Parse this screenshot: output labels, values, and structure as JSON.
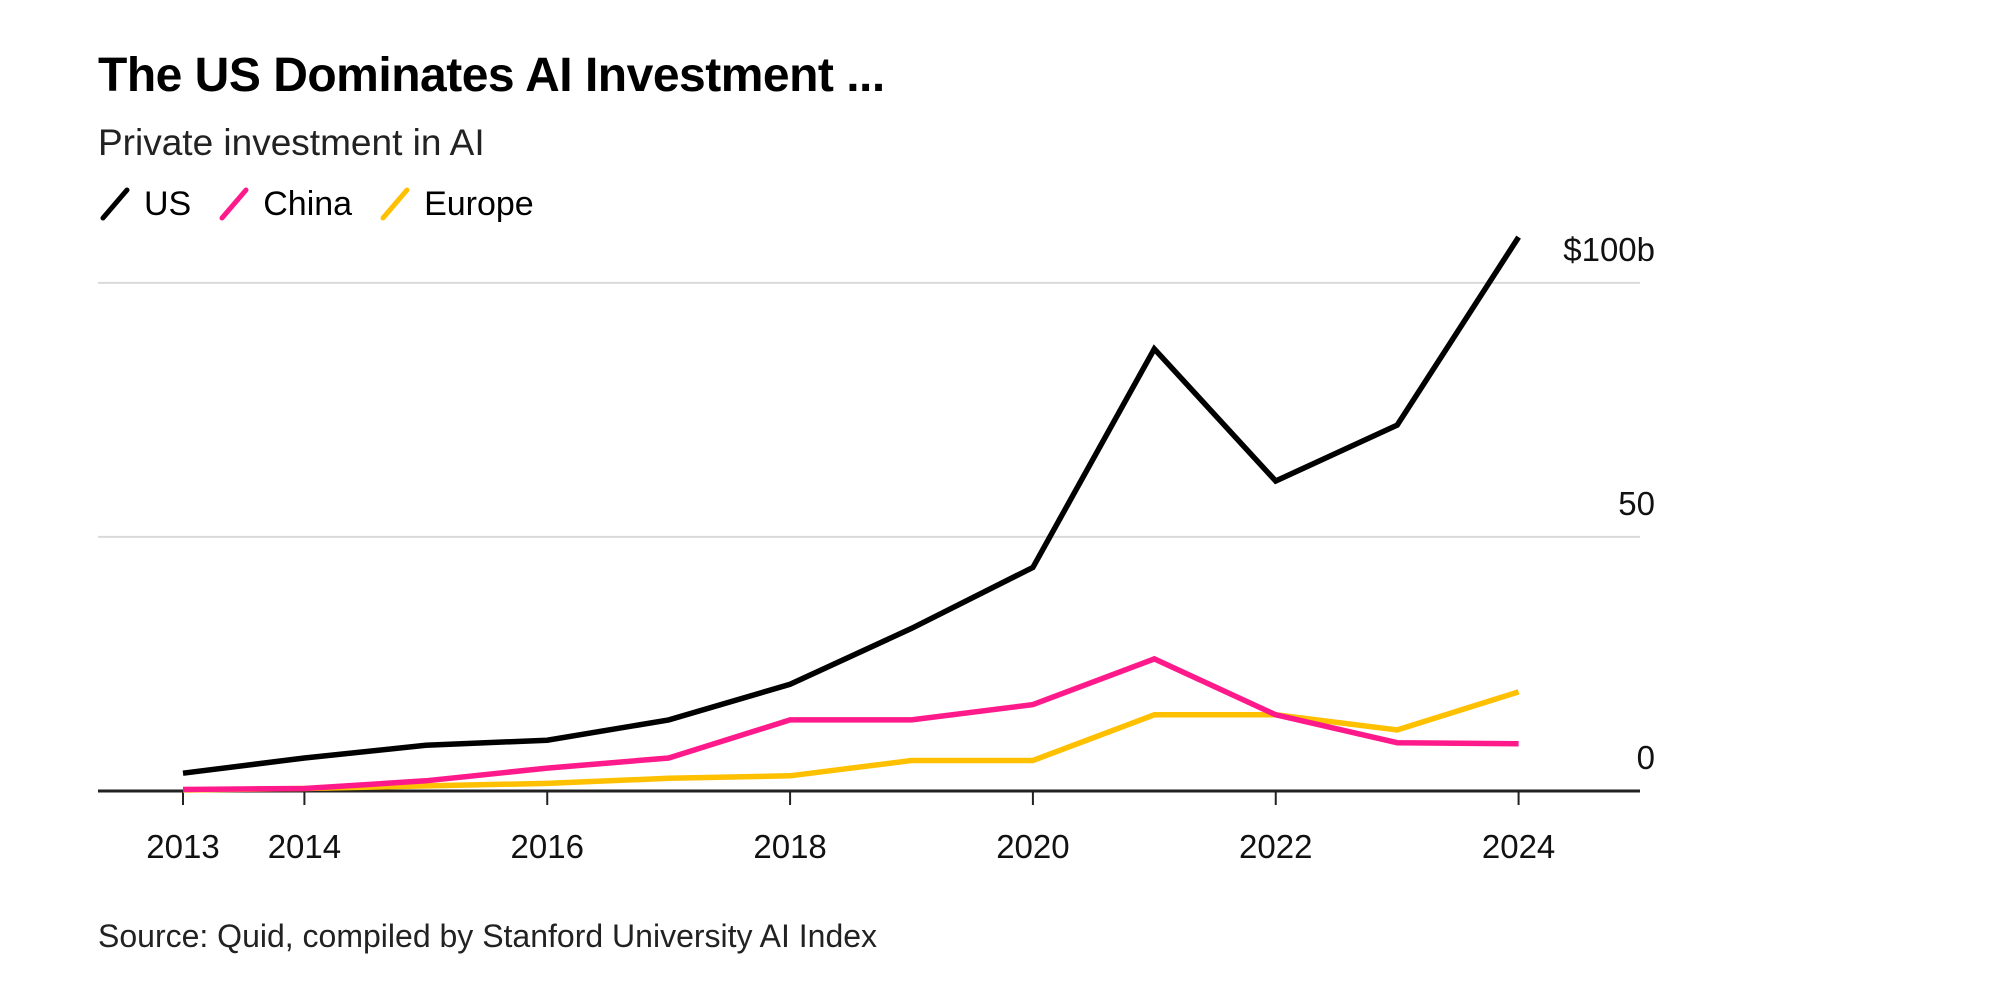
{
  "title": "The US Dominates AI Investment ...",
  "subtitle": "Private investment in AI",
  "source": "Source: Quid, compiled by Stanford University AI Index",
  "chart_data": {
    "type": "line",
    "title": "The US Dominates AI Investment ...",
    "subtitle": "Private investment in AI",
    "xlabel": "",
    "ylabel": "",
    "x": [
      2013,
      2014,
      2015,
      2016,
      2017,
      2018,
      2019,
      2020,
      2021,
      2022,
      2023,
      2024
    ],
    "x_tick_labels": [
      "2013",
      "2014",
      "2016",
      "2018",
      "2020",
      "2022",
      "2024"
    ],
    "x_tick_values": [
      2013,
      2014,
      2016,
      2018,
      2020,
      2022,
      2024
    ],
    "y_tick_labels": [
      "$100b",
      "50",
      "0"
    ],
    "y_tick_values": [
      100,
      50,
      0
    ],
    "xlim": [
      2012.3,
      2025.0
    ],
    "ylim": [
      0,
      110
    ],
    "grid": "horizontal",
    "legend_position": "top-left",
    "series": [
      {
        "name": "US",
        "color": "#000000",
        "values": [
          3.5,
          6.5,
          9.0,
          10.0,
          14.0,
          21.0,
          32.0,
          44.0,
          87.0,
          61.0,
          72.0,
          109.0
        ]
      },
      {
        "name": "China",
        "color": "#ff1a8c",
        "values": [
          0.3,
          0.5,
          2.0,
          4.5,
          6.5,
          14.0,
          14.0,
          17.0,
          26.0,
          15.0,
          9.5,
          9.3
        ]
      },
      {
        "name": "Europe",
        "color": "#ffc000",
        "values": [
          0.2,
          0.5,
          1.0,
          1.5,
          2.5,
          3.0,
          6.0,
          6.0,
          15.0,
          15.0,
          12.0,
          19.5
        ]
      }
    ]
  }
}
